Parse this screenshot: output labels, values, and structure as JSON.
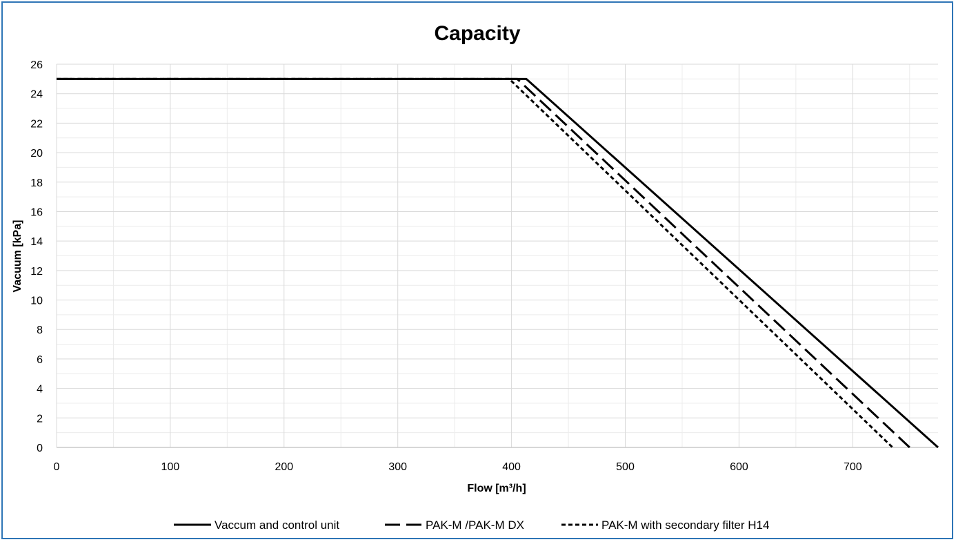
{
  "chart_data": {
    "type": "line",
    "title": "Capacity",
    "xlabel": "Flow [m³/h]",
    "ylabel": "Vacuum [kPa]",
    "xlim": [
      0,
      775
    ],
    "ylim": [
      0,
      26
    ],
    "x_ticks": [
      0,
      100,
      200,
      300,
      400,
      500,
      600,
      700
    ],
    "y_ticks": [
      0,
      2,
      4,
      6,
      8,
      10,
      12,
      14,
      16,
      18,
      20,
      22,
      24,
      26
    ],
    "x_minor_step": 50,
    "y_minor_step": 1,
    "grid": true,
    "legend_position": "bottom",
    "series": [
      {
        "name": "Vaccum and control unit",
        "style": "solid",
        "x": [
          0,
          413,
          775
        ],
        "y": [
          25,
          25,
          0
        ]
      },
      {
        "name": "PAK-M /PAK-M DX",
        "style": "long-dash",
        "x": [
          0,
          405,
          750
        ],
        "y": [
          25,
          25,
          0
        ]
      },
      {
        "name": "PAK-M with secondary filter H14",
        "style": "short-dash",
        "x": [
          0,
          398,
          735
        ],
        "y": [
          25,
          25,
          0
        ]
      }
    ],
    "colors": {
      "line": "#000000",
      "grid_major": "#d9d9d9",
      "grid_minor": "#ececec",
      "border": "#2e75b6"
    }
  }
}
